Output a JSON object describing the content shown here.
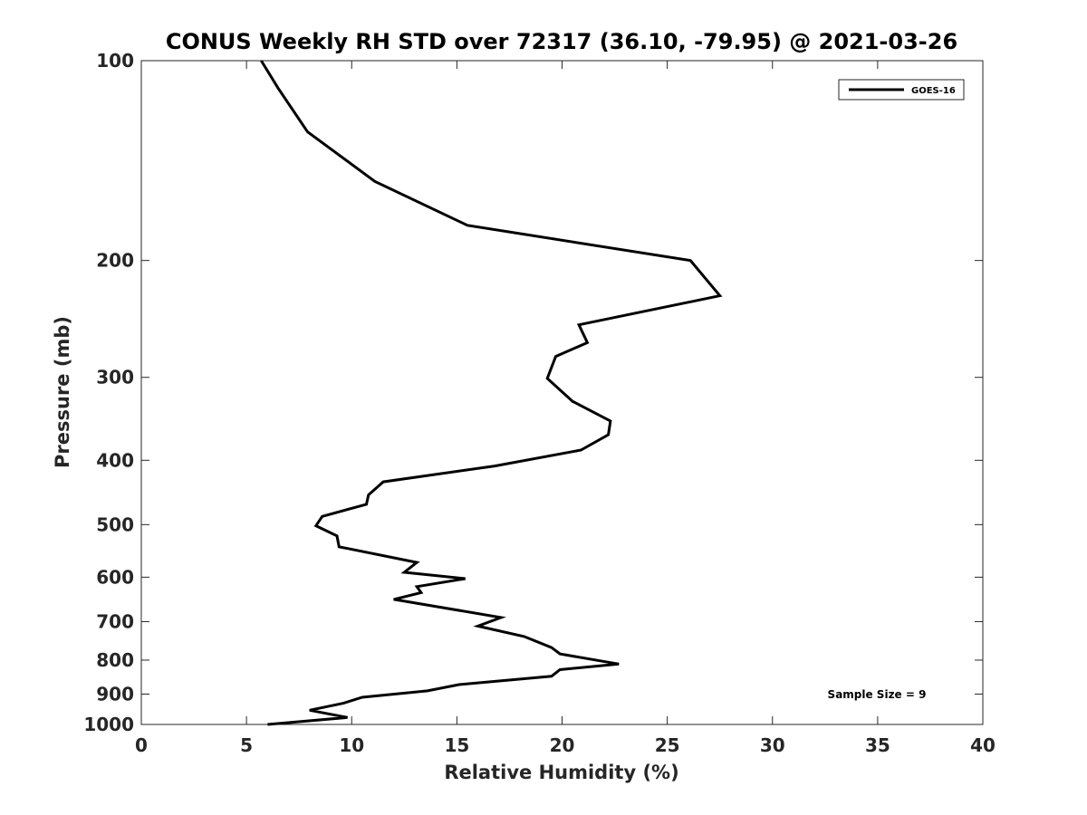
{
  "chart_data": {
    "type": "line",
    "title": "CONUS Weekly RH STD over 72317 (36.10, -79.95) @ 2021-03-26",
    "xlabel": "Relative Humidity (%)",
    "ylabel": "Pressure (mb)",
    "xlim": [
      0,
      40
    ],
    "ylim": [
      1000,
      100
    ],
    "yscale": "log",
    "y_reversed": true,
    "x_ticks": [
      0,
      5,
      10,
      15,
      20,
      25,
      30,
      35,
      40
    ],
    "y_ticks": [
      100,
      200,
      300,
      400,
      500,
      600,
      700,
      800,
      900,
      1000
    ],
    "grid": false,
    "legend_position": "top-right",
    "annotation": "Sample Size = 9",
    "series": [
      {
        "name": "GOES-16",
        "color": "#000000",
        "x": [
          5.7,
          6.5,
          7.9,
          11.1,
          15.5,
          26.1,
          27.5,
          20.8,
          21.2,
          19.7,
          19.3,
          20.5,
          22.3,
          22.2,
          20.9,
          16.8,
          11.5,
          10.8,
          10.7,
          8.6,
          8.3,
          9.3,
          9.4,
          13.1,
          12.5,
          15.4,
          13.1,
          13.3,
          12.0,
          17.1,
          16.0,
          18.2,
          19.5,
          19.9,
          22.7,
          19.9,
          19.5,
          15.1,
          13.6,
          10.5,
          9.6,
          8.0,
          9.8,
          6.0
        ],
        "y": [
          100,
          110,
          128,
          152,
          177,
          200,
          226,
          250,
          266,
          279,
          301,
          326,
          349,
          366,
          386,
          408,
          431,
          451,
          466,
          486,
          502,
          520,
          540,
          570,
          590,
          603,
          620,
          633,
          648,
          690,
          711,
          737,
          766,
          783,
          811,
          827,
          846,
          871,
          890,
          910,
          929,
          952,
          976,
          1000
        ]
      }
    ]
  }
}
